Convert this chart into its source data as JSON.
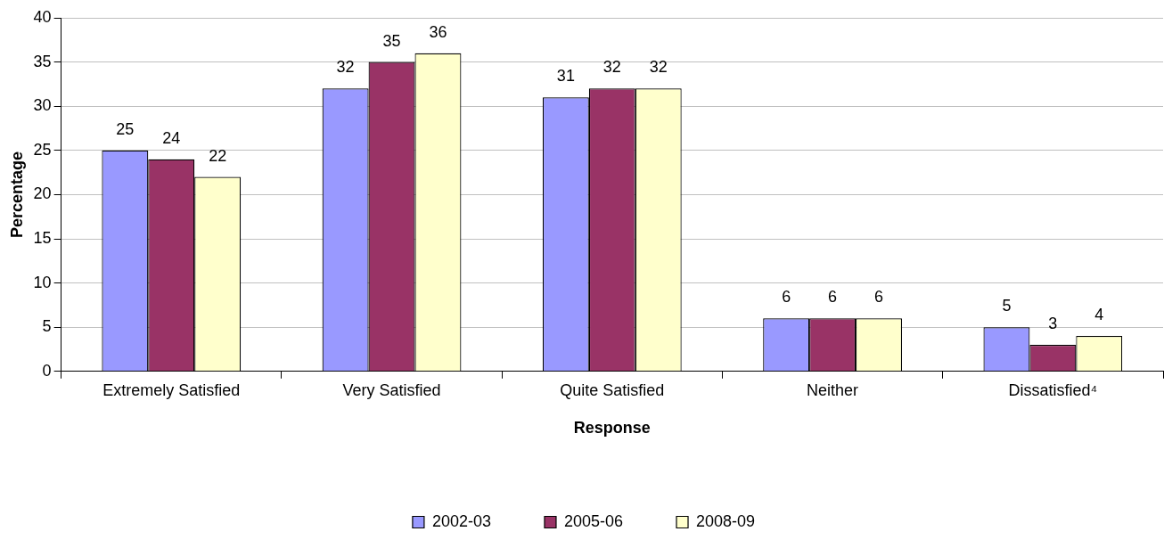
{
  "chart_data": {
    "type": "bar",
    "xlabel": "Response",
    "ylabel": "Percentage",
    "categories": [
      "Extremely Satisfied",
      "Very Satisfied",
      "Quite Satisfied",
      "Neither",
      "Dissatisfied⁴"
    ],
    "series": [
      {
        "name": "2002-03",
        "color": "#9999ff",
        "values": [
          25,
          32,
          31,
          6,
          5
        ]
      },
      {
        "name": "2005-06",
        "color": "#993366",
        "values": [
          24,
          35,
          32,
          6,
          3
        ]
      },
      {
        "name": "2008-09",
        "color": "#ffffcc",
        "values": [
          22,
          36,
          32,
          6,
          4
        ]
      }
    ],
    "ylim": [
      0,
      40
    ],
    "yticks": [
      0,
      5,
      10,
      15,
      20,
      25,
      30,
      35,
      40
    ],
    "grid": "y",
    "legend": "bottom",
    "data_labels": true
  }
}
